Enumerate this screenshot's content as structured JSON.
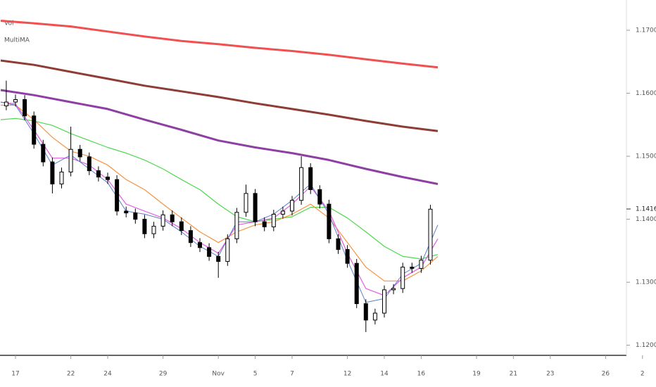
{
  "chart_data": {
    "type": "candlestick",
    "indicators": [
      "Vol",
      "MultiMA"
    ],
    "candle_color": "#000000",
    "x": [
      -0.5,
      0,
      0.5,
      1,
      1.5,
      2,
      2.5,
      3,
      3.5,
      4,
      4.5,
      5,
      5.5,
      6,
      6.5,
      7,
      7.5,
      8,
      8.5,
      9,
      9.5,
      10,
      10.5,
      11,
      11.5,
      12,
      12.5,
      13,
      13.5,
      14,
      14.5,
      15,
      15.5,
      16,
      16.5,
      17,
      17.5,
      18,
      18.5,
      19,
      19.5,
      20,
      20.5,
      21,
      21.5,
      22,
      22.5
    ],
    "open": [
      1.158,
      1.1586,
      1.159,
      1.1564,
      1.1519,
      1.1491,
      1.1456,
      1.1475,
      1.1511,
      1.1499,
      1.1477,
      1.1467,
      1.1463,
      1.1413,
      1.141,
      1.14,
      1.1377,
      1.1389,
      1.1407,
      1.1396,
      1.1382,
      1.1363,
      1.1355,
      1.1341,
      1.1333,
      1.1369,
      1.1411,
      1.1441,
      1.1396,
      1.1388,
      1.1408,
      1.1413,
      1.143,
      1.1482,
      1.1447,
      1.1424,
      1.1369,
      1.1352,
      1.133,
      1.1266,
      1.124,
      1.1251,
      1.1288,
      1.129,
      1.1324,
      1.1322,
      1.1335
    ],
    "high": [
      1.162,
      1.1598,
      1.1597,
      1.1571,
      1.1526,
      1.1498,
      1.1482,
      1.1547,
      1.1518,
      1.1506,
      1.1484,
      1.1474,
      1.147,
      1.142,
      1.1417,
      1.1407,
      1.1396,
      1.1414,
      1.1414,
      1.1403,
      1.1389,
      1.137,
      1.1362,
      1.1348,
      1.1376,
      1.1418,
      1.1455,
      1.1448,
      1.1403,
      1.1415,
      1.142,
      1.1437,
      1.15,
      1.1489,
      1.1454,
      1.1431,
      1.1376,
      1.1359,
      1.1337,
      1.1273,
      1.1258,
      1.1295,
      1.1297,
      1.1331,
      1.1331,
      1.1342,
      1.1423
    ],
    "low": [
      1.1573,
      1.1579,
      1.1557,
      1.1512,
      1.1484,
      1.1441,
      1.1449,
      1.1468,
      1.1492,
      1.147,
      1.146,
      1.1456,
      1.1406,
      1.1403,
      1.1393,
      1.137,
      1.137,
      1.1382,
      1.1389,
      1.1375,
      1.1356,
      1.1348,
      1.1334,
      1.1307,
      1.1326,
      1.1362,
      1.1404,
      1.1389,
      1.1381,
      1.1381,
      1.1401,
      1.1406,
      1.1423,
      1.144,
      1.1417,
      1.1362,
      1.1345,
      1.1323,
      1.1259,
      1.1221,
      1.1233,
      1.1244,
      1.1281,
      1.1283,
      1.1315,
      1.1315,
      1.1328
    ],
    "close": [
      1.1586,
      1.159,
      1.1564,
      1.1519,
      1.1491,
      1.1456,
      1.1475,
      1.1511,
      1.1499,
      1.1477,
      1.1467,
      1.1463,
      1.1413,
      1.141,
      1.14,
      1.1377,
      1.1389,
      1.1407,
      1.1396,
      1.1382,
      1.1363,
      1.1355,
      1.1341,
      1.1333,
      1.1369,
      1.1411,
      1.1441,
      1.1396,
      1.1388,
      1.1408,
      1.1413,
      1.143,
      1.1482,
      1.1447,
      1.1424,
      1.1369,
      1.1352,
      1.133,
      1.1266,
      1.124,
      1.1251,
      1.1288,
      1.129,
      1.1324,
      1.1322,
      1.1335,
      1.1416
    ],
    "ma_series": [
      {
        "color": "#f0504f",
        "width": 3,
        "x": [
          -0.8,
          1,
          3,
          5,
          7,
          9,
          11,
          13,
          15,
          17,
          19,
          21,
          22.9
        ],
        "values": [
          1.1715,
          1.1711,
          1.1706,
          1.1698,
          1.169,
          1.1683,
          1.1678,
          1.1672,
          1.1667,
          1.1661,
          1.1654,
          1.1647,
          1.1641
        ]
      },
      {
        "color": "#8d3d35",
        "width": 3,
        "x": [
          -0.8,
          1,
          3,
          5,
          7,
          9,
          11,
          13,
          15,
          17,
          19,
          21,
          22.9
        ],
        "values": [
          1.1652,
          1.1645,
          1.1634,
          1.1623,
          1.1612,
          1.1603,
          1.1594,
          1.1584,
          1.1575,
          1.1566,
          1.1556,
          1.1547,
          1.154
        ]
      },
      {
        "color": "#8e3fa3",
        "width": 3,
        "x": [
          -0.8,
          1,
          3,
          5,
          7,
          9,
          11,
          13,
          15,
          17,
          19,
          21,
          22.9
        ],
        "values": [
          1.1605,
          1.1597,
          1.1586,
          1.1575,
          1.1558,
          1.1542,
          1.1525,
          1.1514,
          1.1505,
          1.1494,
          1.148,
          1.1467,
          1.1456
        ]
      },
      {
        "color": "#4cd94c",
        "width": 1.2,
        "x": [
          -0.8,
          0,
          1,
          2,
          3,
          4,
          5,
          6,
          7,
          8,
          9,
          10,
          11,
          12,
          13,
          14,
          15,
          16,
          17,
          18,
          19,
          20,
          21,
          22,
          22.9
        ],
        "values": [
          1.1558,
          1.156,
          1.1556,
          1.1549,
          1.1536,
          1.1525,
          1.1514,
          1.1505,
          1.1494,
          1.148,
          1.1463,
          1.1447,
          1.1424,
          1.1404,
          1.1396,
          1.14,
          1.1404,
          1.1419,
          1.1419,
          1.1402,
          1.138,
          1.1357,
          1.1341,
          1.1337,
          1.1344
        ]
      },
      {
        "color": "#f59342",
        "width": 1.2,
        "x": [
          -0.8,
          0,
          1,
          2,
          3,
          4,
          5,
          6,
          7,
          8,
          9,
          10,
          11,
          12,
          13,
          14,
          15,
          16,
          17,
          18,
          19,
          20,
          21,
          22,
          22.9
        ],
        "values": [
          1.1581,
          1.1581,
          1.1558,
          1.153,
          1.1508,
          1.15,
          1.1486,
          1.1463,
          1.1447,
          1.1424,
          1.1402,
          1.138,
          1.1363,
          1.138,
          1.1391,
          1.1396,
          1.1408,
          1.1424,
          1.1402,
          1.1363,
          1.1324,
          1.1302,
          1.1302,
          1.1318,
          1.1341
        ]
      },
      {
        "color": "#e05ce0",
        "width": 1.2,
        "x": [
          -0.8,
          0,
          1,
          2,
          3,
          4,
          5,
          6,
          7,
          8,
          9,
          10,
          11,
          12,
          13,
          14,
          15,
          16,
          17,
          18,
          19,
          20,
          21,
          22,
          22.9
        ],
        "values": [
          1.1586,
          1.1583,
          1.1542,
          1.1497,
          1.1497,
          1.1486,
          1.1463,
          1.1424,
          1.1413,
          1.1402,
          1.1385,
          1.1363,
          1.1346,
          1.1391,
          1.1396,
          1.1402,
          1.1424,
          1.1452,
          1.1413,
          1.1346,
          1.129,
          1.1279,
          1.1307,
          1.1324,
          1.1369
        ]
      },
      {
        "color": "#5b7fc9",
        "width": 1,
        "x": [
          -0.8,
          0,
          1,
          2,
          3,
          4,
          5,
          6,
          7,
          8,
          9,
          10,
          11,
          12,
          13,
          14,
          15,
          16,
          17,
          18,
          19,
          20,
          21,
          22,
          22.9
        ],
        "values": [
          1.1586,
          1.1581,
          1.1536,
          1.1486,
          1.1502,
          1.148,
          1.1458,
          1.1413,
          1.1408,
          1.14,
          1.138,
          1.1357,
          1.1341,
          1.1396,
          1.1396,
          1.1408,
          1.143,
          1.1456,
          1.1408,
          1.1335,
          1.1268,
          1.1274,
          1.1313,
          1.133,
          1.1391
        ]
      }
    ],
    "last_price": 1.14163,
    "xlim": [
      -0.84,
      33.13
    ],
    "ylim": [
      1.1184,
      1.1748
    ],
    "xticks": [
      {
        "value": 0,
        "label": "17"
      },
      {
        "value": 3,
        "label": "22"
      },
      {
        "value": 5,
        "label": "24"
      },
      {
        "value": 8,
        "label": "29"
      },
      {
        "value": 11,
        "label": "Nov"
      },
      {
        "value": 13,
        "label": "5"
      },
      {
        "value": 15,
        "label": "7"
      },
      {
        "value": 18,
        "label": "12"
      },
      {
        "value": 20,
        "label": "14"
      },
      {
        "value": 22,
        "label": "16"
      },
      {
        "value": 25,
        "label": "19"
      },
      {
        "value": 27,
        "label": "21"
      },
      {
        "value": 29,
        "label": "23"
      },
      {
        "value": 32,
        "label": "26"
      },
      {
        "value": 34,
        "label": "2"
      }
    ],
    "yticks": [
      {
        "value": 1.12,
        "label": "1.12000"
      },
      {
        "value": 1.13,
        "label": "1.13000"
      },
      {
        "value": 1.14,
        "label": "1.14000"
      },
      {
        "value": 1.15,
        "label": "1.15000"
      },
      {
        "value": 1.16,
        "label": "1.16000"
      },
      {
        "value": 1.17,
        "label": "1.17000"
      }
    ]
  }
}
